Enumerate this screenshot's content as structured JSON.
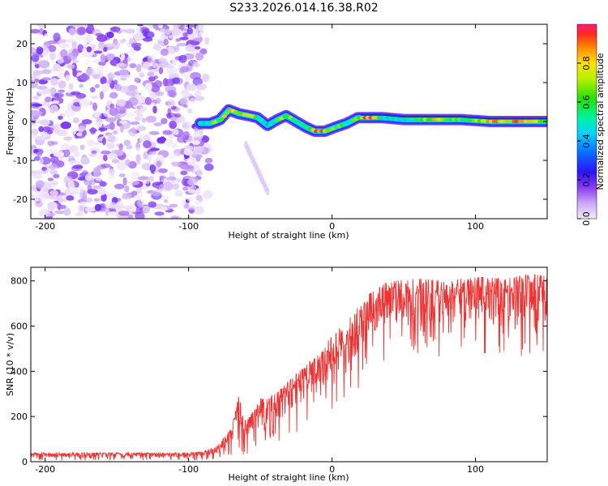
{
  "title": "S233.2026.014.16.38.R02",
  "chart_data": [
    {
      "type": "heatmap",
      "name": "spectrogram",
      "xlabel": "Height of straight line (km)",
      "ylabel": "Frequency (Hz)",
      "xlim": [
        -210,
        150
      ],
      "ylim": [
        -25,
        25
      ],
      "xticks": [
        -200,
        -100,
        0,
        100
      ],
      "yticks": [
        -20,
        -10,
        0,
        10,
        20
      ],
      "noise_region_x": [
        -210,
        -92
      ],
      "ridge": {
        "x": [
          -92,
          -85,
          -78,
          -72,
          -65,
          -58,
          -52,
          -45,
          -38,
          -32,
          -25,
          -18,
          -12,
          -5,
          2,
          10,
          18,
          25,
          35,
          50,
          70,
          90,
          110,
          130,
          150
        ],
        "freq": [
          -0.5,
          -0.5,
          0.5,
          3,
          2,
          1.5,
          1,
          -1,
          0.5,
          1.5,
          0,
          -1.5,
          -2.5,
          -2.5,
          -1.5,
          -0.5,
          1,
          1,
          1,
          0.5,
          0.5,
          0.5,
          0,
          0,
          0
        ],
        "amp": [
          0.45,
          0.6,
          0.75,
          0.85,
          0.8,
          0.85,
          0.55,
          0.5,
          0.65,
          0.75,
          0.65,
          0.6,
          0.9,
          0.85,
          0.65,
          0.6,
          0.8,
          0.95,
          0.5,
          0.55,
          0.8,
          0.6,
          0.85,
          0.9,
          0.7
        ]
      },
      "streak": {
        "x": [
          -60,
          -45
        ],
        "freq": [
          -6,
          -18
        ]
      }
    },
    {
      "type": "colorbar",
      "name": "amplitude-colorbar",
      "label": "Normalized spectral amplitude",
      "range": [
        0,
        1
      ],
      "ticks": [
        "0.0",
        "0.2",
        "0.4",
        "0.6",
        "0.8"
      ],
      "tick_values": [
        0.0,
        0.2,
        0.4,
        0.6,
        0.8
      ]
    },
    {
      "type": "line",
      "name": "snr",
      "xlabel": "Height of straight line (km)",
      "ylabel": "SNR (10 * v/v)",
      "xlim": [
        -210,
        150
      ],
      "ylim": [
        0,
        860
      ],
      "xticks": [
        -200,
        -100,
        0,
        100
      ],
      "yticks": [
        0,
        200,
        400,
        600,
        800
      ],
      "color": "#ee3333",
      "envelope": {
        "x": [
          -210,
          -100,
          -90,
          -80,
          -70,
          -65,
          -60,
          -50,
          -40,
          -30,
          -20,
          -10,
          0,
          10,
          20,
          30,
          40,
          60,
          80,
          100,
          120,
          140,
          150
        ],
        "upper": [
          40,
          40,
          45,
          70,
          150,
          300,
          180,
          280,
          300,
          360,
          420,
          470,
          560,
          620,
          700,
          770,
          800,
          810,
          800,
          820,
          810,
          830,
          820
        ],
        "lower": [
          5,
          5,
          5,
          10,
          20,
          30,
          30,
          50,
          70,
          100,
          140,
          180,
          200,
          260,
          330,
          420,
          450,
          480,
          450,
          480,
          470,
          460,
          450
        ]
      }
    }
  ]
}
